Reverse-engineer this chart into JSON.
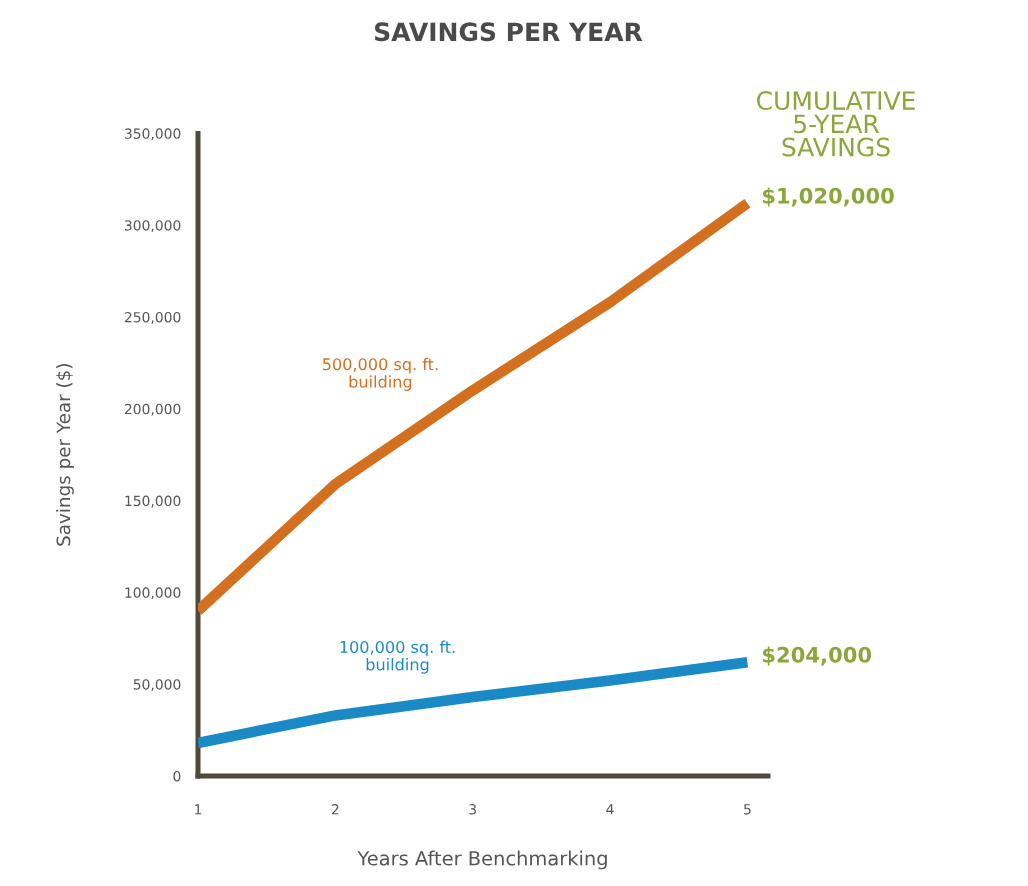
{
  "chart_data": {
    "type": "line",
    "title": "SAVINGS PER YEAR",
    "xlabel": "Years After Benchmarking",
    "ylabel": "Savings per Year ($)",
    "x": [
      1,
      2,
      3,
      4,
      5
    ],
    "series": [
      {
        "name": "500,000 sq. ft.\nbuilding",
        "color": "#d2701f",
        "values": [
          90000,
          159000,
          210000,
          258000,
          312000
        ]
      },
      {
        "name": "100,000 sq. ft.\nbuilding",
        "color": "#1a8ac6",
        "values": [
          18000,
          33000,
          43000,
          52000,
          62000
        ]
      }
    ],
    "xlim": [
      1,
      5.15
    ],
    "xticks": [
      1,
      2,
      3,
      4,
      5
    ],
    "ylim": [
      0,
      350000
    ],
    "yticks": [
      {
        "value": 0,
        "label": "0"
      },
      {
        "value": 50000,
        "label": "50,000"
      },
      {
        "value": 100000,
        "label": "100,000"
      },
      {
        "value": 150000,
        "label": "150,000"
      },
      {
        "value": 200000,
        "label": "200,000"
      },
      {
        "value": 250000,
        "label": "250,000"
      },
      {
        "value": 300000,
        "label": "300,000"
      },
      {
        "value": 350000,
        "label": "350,000"
      }
    ],
    "grid": false,
    "marker": "none",
    "line_style": "solid",
    "annotations": [
      "CUMULATIVE\n5-YEAR\nSAVINGS",
      {
        "text": "$1,020,000",
        "x": 5,
        "y": 312000
      },
      {
        "text": "$204,000",
        "x": 5,
        "y": 62000
      }
    ]
  }
}
